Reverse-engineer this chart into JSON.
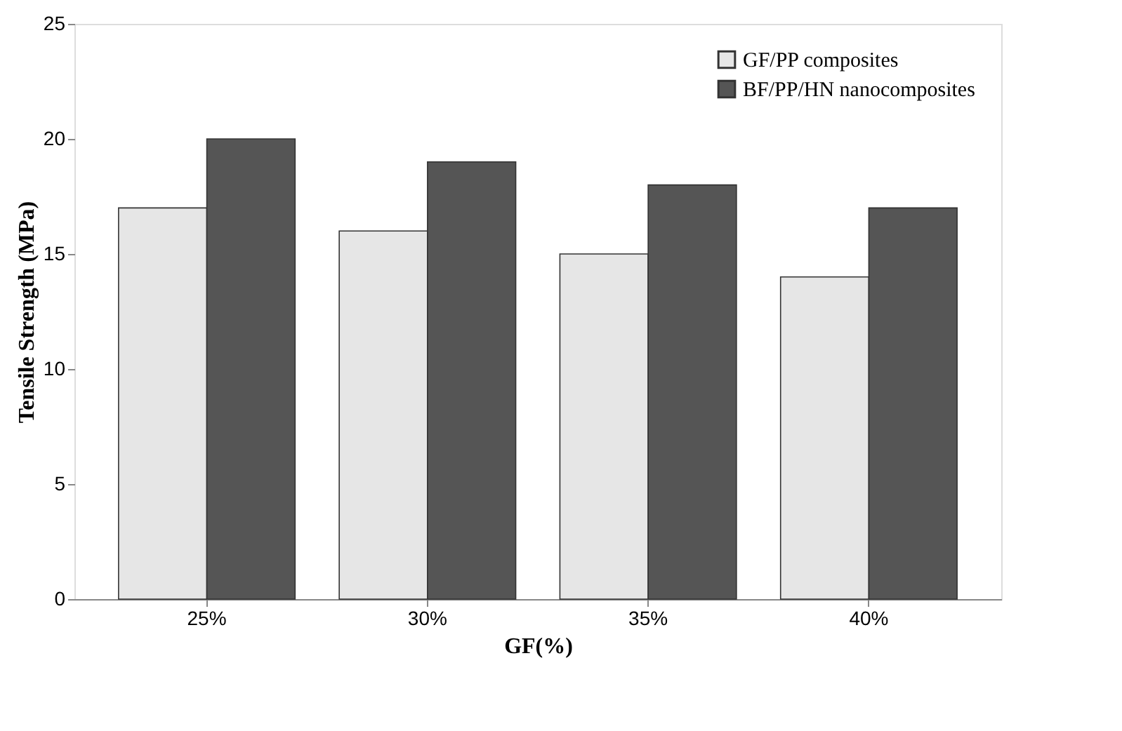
{
  "chart_data": {
    "type": "bar",
    "xlabel": "GF(%)",
    "ylabel": "Tensile Strength (MPa)",
    "categories": [
      "25%",
      "30%",
      "35%",
      "40%"
    ],
    "series": [
      {
        "name": "GF/PP composites",
        "color": "#e6e6e6",
        "values": [
          17,
          16,
          15,
          14
        ]
      },
      {
        "name": "BF/PP/HN nanocomposites",
        "color": "#555555",
        "values": [
          20,
          19,
          18,
          17
        ]
      }
    ],
    "ylim": [
      0,
      25
    ],
    "yticks": [
      0,
      5,
      10,
      15,
      20,
      25
    ],
    "grid": false,
    "legend": "top right"
  }
}
